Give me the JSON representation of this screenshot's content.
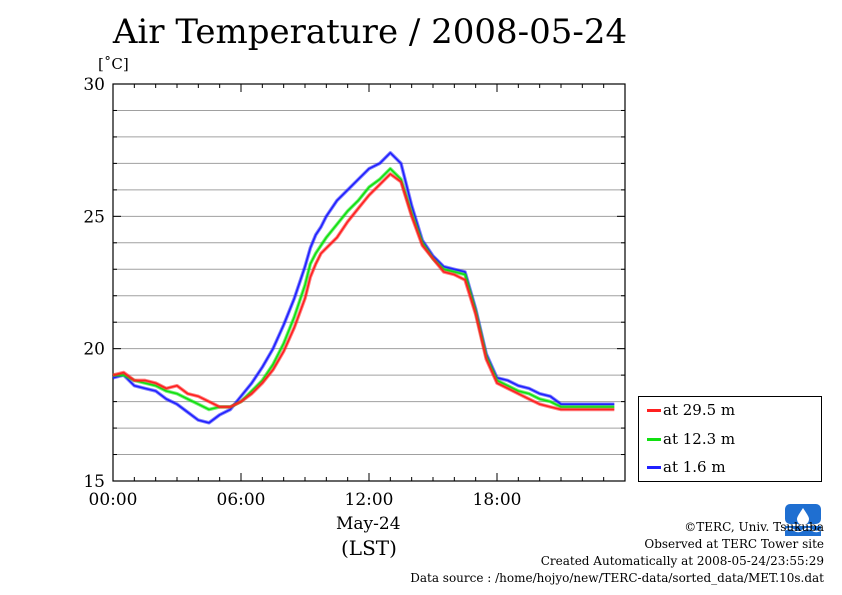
{
  "title": "Air Temperature / 2008-05-24",
  "unit_label": "[˚C]",
  "x_date_label": "May-24",
  "x_tz_label": "(LST)",
  "colors": {
    "red": "#ff2020",
    "green": "#10e010",
    "blue": "#2020ff"
  },
  "chart_data": {
    "type": "line",
    "title": "Air Temperature / 2008-05-24",
    "ylabel": "[˚C]",
    "xlabel": "May-24 (LST)",
    "ylim": [
      15,
      30
    ],
    "xlim": [
      0,
      24
    ],
    "yticks": [
      15,
      20,
      25,
      30
    ],
    "xticks": [
      0,
      6,
      12,
      18
    ],
    "xtick_labels": [
      "00:00",
      "06:00",
      "12:00",
      "18:00"
    ],
    "grid": true,
    "legend_position": "right-bottom outside",
    "x": [
      0,
      0.5,
      1,
      1.5,
      2,
      2.5,
      3,
      3.5,
      4,
      4.5,
      5,
      5.5,
      6,
      6.5,
      7,
      7.5,
      8,
      8.5,
      9,
      9.25,
      9.5,
      9.75,
      10,
      10.5,
      11,
      11.5,
      12,
      12.5,
      13,
      13.5,
      14,
      14.5,
      15,
      15.5,
      16,
      16.5,
      17,
      17.5,
      18,
      18.5,
      19,
      19.5,
      20,
      20.5,
      21,
      21.5,
      22,
      22.5,
      23,
      23.5
    ],
    "series": [
      {
        "name": "at 29.5 m",
        "color": "#ff2020",
        "values": [
          19.0,
          19.1,
          18.8,
          18.8,
          18.7,
          18.5,
          18.6,
          18.3,
          18.2,
          18.0,
          17.8,
          17.8,
          18.0,
          18.3,
          18.7,
          19.2,
          19.9,
          20.8,
          21.9,
          22.7,
          23.2,
          23.6,
          23.8,
          24.2,
          24.8,
          25.3,
          25.8,
          26.2,
          26.6,
          26.3,
          25.0,
          23.9,
          23.4,
          22.9,
          22.8,
          22.6,
          21.3,
          19.6,
          18.7,
          18.5,
          18.3,
          18.1,
          17.9,
          17.8,
          17.7,
          17.7,
          17.7,
          17.7,
          17.7,
          17.7
        ]
      },
      {
        "name": "at 12.3 m",
        "color": "#10e010",
        "values": [
          19.0,
          19.0,
          18.8,
          18.7,
          18.6,
          18.4,
          18.3,
          18.1,
          17.9,
          17.7,
          17.8,
          17.8,
          18.0,
          18.4,
          18.8,
          19.4,
          20.2,
          21.2,
          22.4,
          23.2,
          23.6,
          23.9,
          24.2,
          24.7,
          25.2,
          25.6,
          26.1,
          26.4,
          26.8,
          26.4,
          25.1,
          24.0,
          23.4,
          23.0,
          22.9,
          22.8,
          21.4,
          19.7,
          18.8,
          18.6,
          18.4,
          18.3,
          18.1,
          18.0,
          17.8,
          17.8,
          17.8,
          17.8,
          17.8,
          17.8
        ]
      },
      {
        "name": "at 1.6 m",
        "color": "#2020ff",
        "values": [
          18.9,
          19.0,
          18.6,
          18.5,
          18.4,
          18.1,
          17.9,
          17.6,
          17.3,
          17.2,
          17.5,
          17.7,
          18.2,
          18.7,
          19.3,
          20.0,
          20.9,
          21.9,
          23.1,
          23.8,
          24.3,
          24.6,
          25.0,
          25.6,
          26.0,
          26.4,
          26.8,
          27.0,
          27.4,
          27.0,
          25.4,
          24.1,
          23.5,
          23.1,
          23.0,
          22.9,
          21.5,
          19.8,
          18.9,
          18.8,
          18.6,
          18.5,
          18.3,
          18.2,
          17.9,
          17.9,
          17.9,
          17.9,
          17.9,
          17.9
        ]
      }
    ]
  },
  "credits": {
    "copyright": "©TERC, Univ. Tsukuba",
    "observed": "Observed at TERC Tower site",
    "created": "Created Automatically at 2008-05-24/23:55:29",
    "source": "Data source : /home/hojyo/new/TERC-data/sorted_data/MET.10s.dat"
  }
}
